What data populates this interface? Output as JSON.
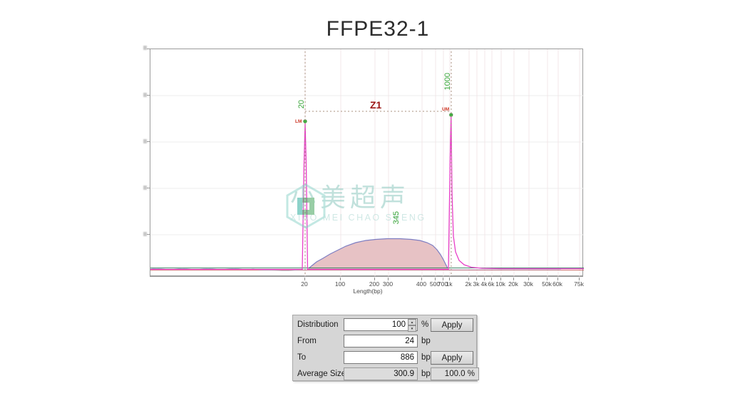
{
  "title": "FFPE32-1",
  "chart_data": {
    "type": "area",
    "title": "FFPE32-1",
    "xlabel": "Length(bp)",
    "ylabel": "",
    "x_axis": {
      "scale": "nonlinear-fragment-size",
      "ticks": [
        {
          "label": "20",
          "x": 217
        },
        {
          "label": "100",
          "x": 267
        },
        {
          "label": "200",
          "x": 315
        },
        {
          "label": "300",
          "x": 334
        },
        {
          "label": "400",
          "x": 381
        },
        {
          "label": "500",
          "x": 400
        },
        {
          "label": "700",
          "x": 411
        },
        {
          "label": "1k",
          "x": 420
        },
        {
          "label": "2k",
          "x": 447
        },
        {
          "label": "3k",
          "x": 458
        },
        {
          "label": "4k",
          "x": 469
        },
        {
          "label": "6k",
          "x": 479
        },
        {
          "label": "10k",
          "x": 492
        },
        {
          "label": "20k",
          "x": 510
        },
        {
          "label": "30k",
          "x": 531
        },
        {
          "label": "50k",
          "x": 557
        },
        {
          "label": "60k",
          "x": 572
        },
        {
          "label": "75k",
          "x": 602
        }
      ]
    },
    "y_axis": {
      "major_tick_count": 5,
      "labels_legible": false
    },
    "region": {
      "label": "Z1",
      "from_bp": 20,
      "to_bp": 1000
    },
    "markers": [
      {
        "name": "lower-marker",
        "size_label": "20",
        "tag": "LM",
        "relative_height": 0.68,
        "color": "#e83fc8"
      },
      {
        "name": "upper-marker",
        "size_label": "1000",
        "tag": "UM",
        "relative_height": 0.71,
        "color": "#e83fc8"
      }
    ],
    "smear_peak": {
      "size_label": "345",
      "approx_points_bp_relheight": [
        [
          50,
          0.01
        ],
        [
          100,
          0.07
        ],
        [
          150,
          0.1
        ],
        [
          200,
          0.125
        ],
        [
          250,
          0.135
        ],
        [
          300,
          0.14
        ],
        [
          345,
          0.145
        ],
        [
          400,
          0.14
        ],
        [
          500,
          0.135
        ],
        [
          600,
          0.12
        ],
        [
          700,
          0.08
        ],
        [
          800,
          0.03
        ],
        [
          886,
          0.01
        ]
      ],
      "fill": "#e7c2c5",
      "outline": "#7e7ec2"
    },
    "series": [
      {
        "name": "sample-trace",
        "color": "#7e7ec2"
      },
      {
        "name": "marker-trace",
        "color": "#e83fc8"
      },
      {
        "name": "baseline-green",
        "color": "#2e7c58"
      },
      {
        "name": "baseline-red",
        "color": "#cf5f5f"
      }
    ],
    "grid": true
  },
  "watermark": {
    "logo": "hexagon-soundwave-logo",
    "cn": "小美超声",
    "en": "XIAO MEI CHAO SHENG",
    "teal": "#2fae9e",
    "green": "#45a55c"
  },
  "icons": {
    "spinner_up": "▲",
    "spinner_down": "▼"
  },
  "panel": {
    "distribution": {
      "label": "Distribution",
      "value": "100",
      "unit": "%",
      "apply_label": "Apply"
    },
    "from": {
      "label": "From",
      "value": "24",
      "unit": "bp"
    },
    "to": {
      "label": "To",
      "value": "886",
      "unit": "bp",
      "apply_label": "Apply"
    },
    "average_size": {
      "label": "Average Size",
      "value": "300.9",
      "unit": "bp",
      "percent": "100.0 %"
    }
  }
}
